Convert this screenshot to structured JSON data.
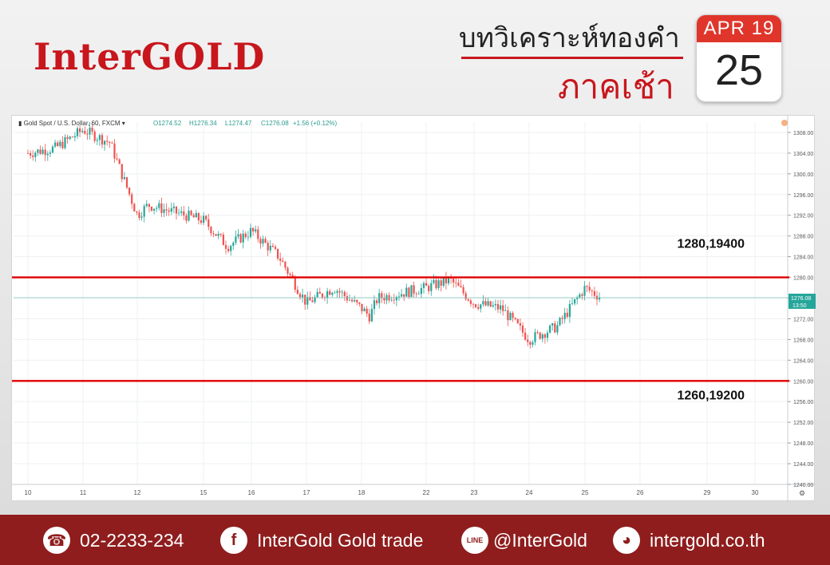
{
  "header": {
    "brand": "InterGOLD",
    "title": "บทวิเคราะห์ทองคำ",
    "subtitle": "ภาคเช้า",
    "calendar_month": "APR 19",
    "calendar_day": "25"
  },
  "colors": {
    "brand_red": "#c8161d",
    "footer_bg": "#8f1d1d",
    "calendar_red": "#e0352b",
    "candle_up": "#26a69a",
    "candle_down": "#ef5350",
    "level_line": "#e00000"
  },
  "chart_data": {
    "type": "candlestick",
    "symbol_label": "Gold Spot / U.S. Dollar, 60, FXCM",
    "ohlc_header": {
      "open": "O1274.52",
      "high": "H1276.34",
      "low": "L1274.47",
      "close": "C1276.08",
      "change": "+1.56 (+0.12%)"
    },
    "ylim": [
      1240,
      1310
    ],
    "y_ticks": [
      "1308.00",
      "1304.00",
      "1300.00",
      "1296.00",
      "1292.00",
      "1288.00",
      "1284.00",
      "1280.00",
      "1276.00",
      "1272.00",
      "1268.00",
      "1264.00",
      "1260.00",
      "1256.00",
      "1252.00",
      "1248.00",
      "1244.00",
      "1240.00"
    ],
    "x_ticks": [
      "10",
      "11",
      "12",
      "15",
      "16",
      "17",
      "18",
      "22",
      "23",
      "24",
      "25",
      "26",
      "29",
      "30"
    ],
    "last_price": "1276.08",
    "last_time": "13:50",
    "close_path": [
      [
        10,
        1304
      ],
      [
        10.5,
        1305
      ],
      [
        11,
        1308.5
      ],
      [
        11.5,
        1306
      ],
      [
        12,
        1292
      ],
      [
        12.5,
        1294
      ],
      [
        15,
        1291
      ],
      [
        15.5,
        1286
      ],
      [
        16,
        1289
      ],
      [
        16.5,
        1284
      ],
      [
        17,
        1275
      ],
      [
        17.5,
        1278
      ],
      [
        18,
        1274
      ],
      [
        18.5,
        1272.5
      ],
      [
        19,
        1276
      ],
      [
        22,
        1278
      ],
      [
        22.5,
        1279.5
      ],
      [
        23,
        1275
      ],
      [
        23.5,
        1274
      ],
      [
        24,
        1268
      ],
      [
        24.5,
        1270.5
      ],
      [
        25,
        1278
      ],
      [
        25.3,
        1276.08
      ]
    ],
    "levels": [
      {
        "value": 1280,
        "label": "1280,19400"
      },
      {
        "value": 1260,
        "label": "1260,19200"
      }
    ]
  },
  "footer": {
    "phone": "02-2233-234",
    "facebook": "InterGold Gold trade",
    "line": "@InterGold",
    "website": "intergold.co.th",
    "phone_icon": "phone-icon",
    "facebook_icon": "facebook-icon",
    "line_icon": "line-icon",
    "web_icon": "globe-icon"
  }
}
